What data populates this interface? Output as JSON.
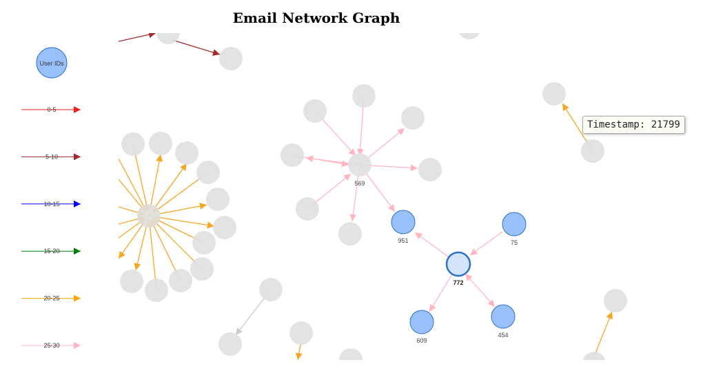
{
  "title": "Email Network Graph",
  "legend": {
    "node_label": "User IDs",
    "items": [
      {
        "label": "0-5",
        "color": "#ff1a1a"
      },
      {
        "label": "5-10",
        "color": "#a52a2a"
      },
      {
        "label": "10-15",
        "color": "#0000ff"
      },
      {
        "label": "15-20",
        "color": "#008000"
      },
      {
        "label": "20-25",
        "color": "#ffa500"
      },
      {
        "label": "25-30",
        "color": "#ffb6c1"
      }
    ]
  },
  "tooltip": {
    "text": "Timestamp: 21799"
  },
  "colors": {
    "highlight_node": "#9ac0fa",
    "highlight_stroke": "#2a70c8",
    "selected_node": "#d4e4fa",
    "inactive_node": "#e0e0e0"
  },
  "chart_data": {
    "type": "network",
    "title": "Email Network Graph",
    "legend_placement": "left",
    "labeled_nodes": [
      {
        "id": "569",
        "state": "inactive"
      },
      {
        "id": "951",
        "state": "highlight"
      },
      {
        "id": "75",
        "state": "highlight"
      },
      {
        "id": "772",
        "state": "selected"
      },
      {
        "id": "609",
        "state": "highlight"
      },
      {
        "id": "454",
        "state": "highlight"
      }
    ],
    "highlighted_edges": [
      {
        "source": "772",
        "target": "951",
        "range": "25-30"
      },
      {
        "source": "75",
        "target": "772",
        "range": "25-30"
      },
      {
        "source": "772",
        "target": "609",
        "range": "25-30"
      },
      {
        "source": "772",
        "target": "454",
        "range": "25-30",
        "bidirectional": true
      }
    ]
  }
}
